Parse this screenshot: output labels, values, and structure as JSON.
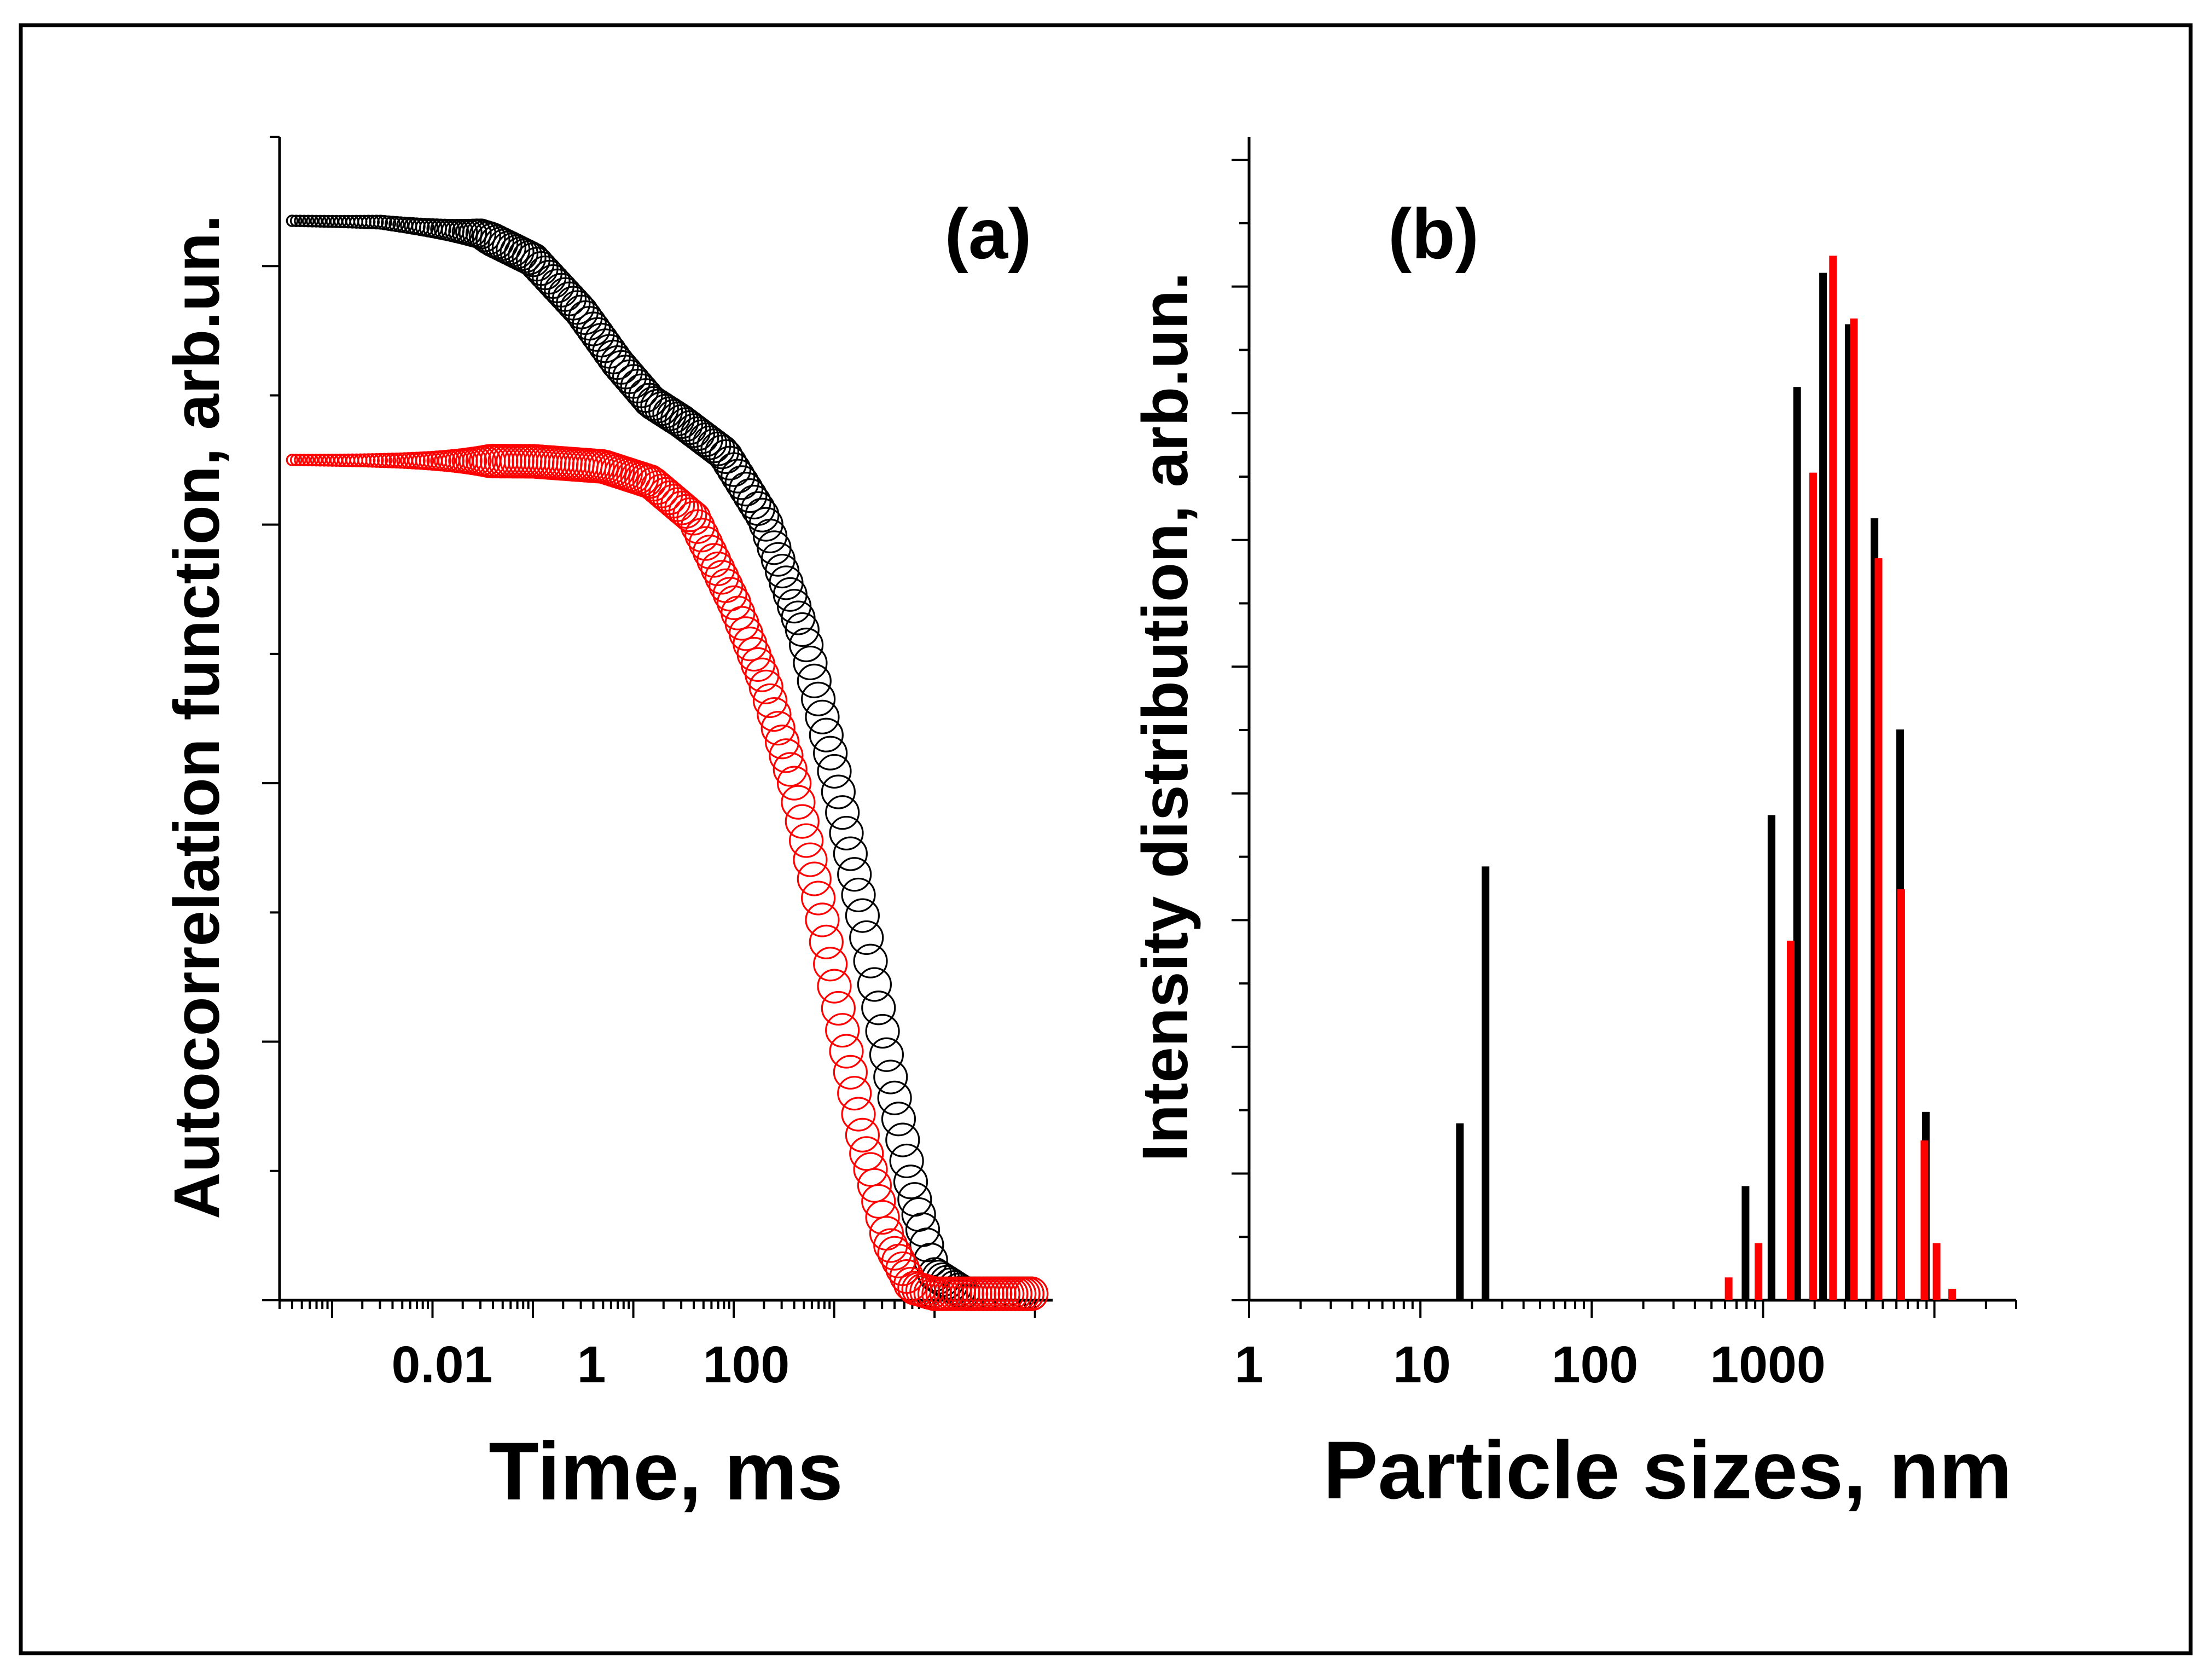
{
  "colors": {
    "series_black": "#000000",
    "series_red": "#ff0000",
    "background": "#ffffff",
    "frame": "#000000"
  },
  "chart_data": [
    {
      "id": "a",
      "panel_label": "(a)",
      "type": "scatter",
      "marker": "open-circle",
      "xscale": "log",
      "xlabel": "Time, ms",
      "ylabel": "Autocorrelation function, arb.un.",
      "xlim": [
        0.0003,
        15000
      ],
      "ylim": [
        0,
        9
      ],
      "x_tick_labels": [
        {
          "value": 0.01,
          "label": "0.01"
        },
        {
          "value": 1,
          "label": "1"
        },
        {
          "value": 100,
          "label": "100"
        }
      ],
      "y_tick_labels": [],
      "series": [
        {
          "name": "black",
          "color": "#000000",
          "curve": [
            [
              0.0004,
              8.35
            ],
            [
              0.003,
              8.34
            ],
            [
              0.03,
              8.25
            ],
            [
              0.1,
              8.05
            ],
            [
              0.3,
              7.65
            ],
            [
              0.7,
              7.25
            ],
            [
              1.5,
              6.95
            ],
            [
              3,
              6.8
            ],
            [
              8,
              6.55
            ],
            [
              20,
              6.05
            ],
            [
              50,
              5.15
            ],
            [
              100,
              4.1
            ],
            [
              200,
              2.9
            ],
            [
              350,
              1.8
            ],
            [
              600,
              0.85
            ],
            [
              1000,
              0.2
            ],
            [
              2000,
              0.05
            ],
            [
              10000,
              0.05
            ]
          ]
        },
        {
          "name": "red",
          "color": "#ff0000",
          "curve": [
            [
              0.0004,
              6.5
            ],
            [
              0.1,
              6.49
            ],
            [
              0.5,
              6.45
            ],
            [
              1.5,
              6.33
            ],
            [
              4,
              6.05
            ],
            [
              10,
              5.4
            ],
            [
              20,
              4.8
            ],
            [
              40,
              4.0
            ],
            [
              70,
              3.1
            ],
            [
              120,
              2.1
            ],
            [
              200,
              1.2
            ],
            [
              350,
              0.45
            ],
            [
              600,
              0.1
            ],
            [
              1000,
              0.05
            ],
            [
              10000,
              0.05
            ]
          ]
        }
      ]
    },
    {
      "id": "b",
      "panel_label": "(b)",
      "type": "bar",
      "xscale": "log",
      "xlabel": "Particle sizes, nm",
      "ylabel": "Intensity distribution, arb.un.",
      "xlim": [
        1,
        30000
      ],
      "ylim": [
        0,
        100
      ],
      "x_tick_labels": [
        {
          "value": 1,
          "label": "1"
        },
        {
          "value": 10,
          "label": "10"
        },
        {
          "value": 100,
          "label": "100"
        },
        {
          "value": 1000,
          "label": "1000"
        }
      ],
      "y_tick_labels": [],
      "series": [
        {
          "name": "black",
          "color": "#000000",
          "bars": [
            {
              "x": 17,
              "value": 15.5
            },
            {
              "x": 24,
              "value": 38
            },
            {
              "x": 790,
              "value": 10
            },
            {
              "x": 1120,
              "value": 42.5
            },
            {
              "x": 1580,
              "value": 80
            },
            {
              "x": 2240,
              "value": 90
            },
            {
              "x": 3160,
              "value": 85.5
            },
            {
              "x": 4470,
              "value": 68.5
            },
            {
              "x": 6310,
              "value": 50
            },
            {
              "x": 8910,
              "value": 16.5
            }
          ]
        },
        {
          "name": "red",
          "color": "#ff0000",
          "bars": [
            {
              "x": 630,
              "value": 2
            },
            {
              "x": 940,
              "value": 5
            },
            {
              "x": 1450,
              "value": 31.5
            },
            {
              "x": 1960,
              "value": 72.5
            },
            {
              "x": 2560,
              "value": 91.5
            },
            {
              "x": 3390,
              "value": 86
            },
            {
              "x": 4720,
              "value": 65
            },
            {
              "x": 6400,
              "value": 36
            },
            {
              "x": 8750,
              "value": 14
            },
            {
              "x": 10300,
              "value": 5
            },
            {
              "x": 12700,
              "value": 1
            }
          ]
        }
      ]
    }
  ]
}
